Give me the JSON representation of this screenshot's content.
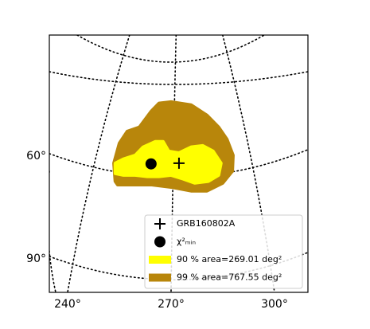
{
  "chart_data": {
    "type": "skymap",
    "xlim": [
      234.7,
      309.7
    ],
    "ylim": [
      99.8,
      24.7
    ],
    "xticks": [
      {
        "value": 240,
        "label": "240°"
      },
      {
        "value": 270,
        "label": "270°"
      },
      {
        "value": 300,
        "label": "300°"
      }
    ],
    "yticks": [
      {
        "value": 60,
        "label": "60°"
      },
      {
        "value": 90,
        "label": "90°"
      }
    ],
    "grid": true,
    "legend": "lower right",
    "series": [
      {
        "name": "GRB160802A",
        "marker": "plus",
        "color": "#000000",
        "x": [
          272.3
        ],
        "y": [
          62.1
        ]
      },
      {
        "name": "χ²ₘᵢₙ",
        "marker": "circle",
        "color": "#000000",
        "x": [
          264.2
        ],
        "y": [
          62.3
        ]
      },
      {
        "name": "90 % area=269.01 deg²",
        "marker": "area",
        "color": "#ffff00",
        "x": [
          253.8,
          253.8,
          256.2,
          259.6,
          261.9,
          265.4,
          267.7,
          269.3,
          272.3,
          275.8,
          279.2,
          282.2,
          284.5,
          283.8,
          280.8,
          276.9,
          273.5,
          270.0,
          266.5,
          263.1,
          259.6,
          256.2
        ],
        "y": [
          65.1,
          62.1,
          60.9,
          59.8,
          57.4,
          55.8,
          55.8,
          58.6,
          59.1,
          57.4,
          57.0,
          58.6,
          62.1,
          65.6,
          67.4,
          67.9,
          66.7,
          65.6,
          66.0,
          66.0,
          65.6,
          65.6
        ]
      },
      {
        "name": "99 % area=767.55 deg²",
        "marker": "area",
        "color": "#b8860b",
        "x": [
          253.8,
          253.4,
          255.0,
          257.3,
          260.8,
          264.2,
          266.5,
          270.0,
          275.8,
          280.4,
          283.8,
          286.2,
          288.0,
          287.8,
          285.0,
          280.4,
          275.8,
          270.0,
          264.2,
          258.5,
          254.5
        ],
        "y": [
          67.4,
          62.1,
          56.3,
          52.8,
          51.6,
          47.0,
          44.6,
          44.2,
          45.1,
          48.1,
          51.6,
          55.1,
          59.8,
          64.4,
          67.9,
          70.2,
          70.2,
          69.1,
          68.4,
          68.4,
          68.4
        ]
      }
    ]
  }
}
